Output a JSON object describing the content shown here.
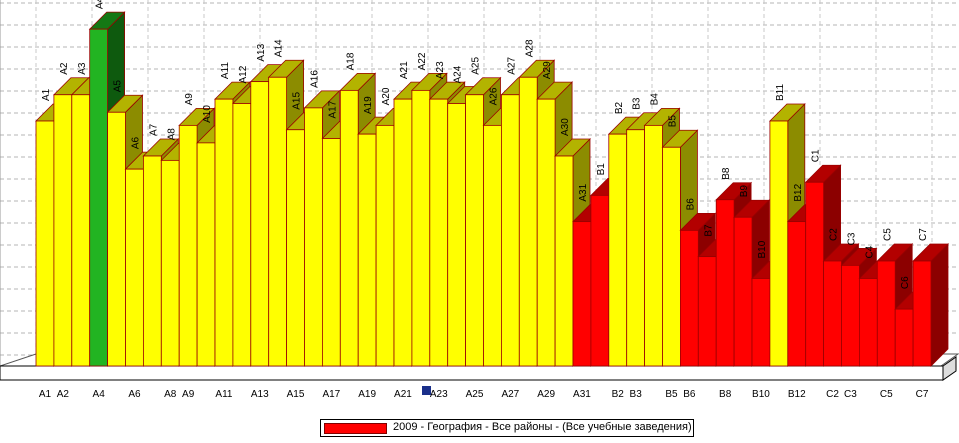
{
  "chart_data": {
    "type": "bar",
    "style": "3d",
    "categories": [
      "A1",
      "A2",
      "A3",
      "A4",
      "A5",
      "A6",
      "A7",
      "A8",
      "A9",
      "A10",
      "A11",
      "A12",
      "A13",
      "A14",
      "A15",
      "A16",
      "A17",
      "A18",
      "A19",
      "A20",
      "A21",
      "A22",
      "A23",
      "A24",
      "A25",
      "A26",
      "A27",
      "A28",
      "A29",
      "A30",
      "A31",
      "B1",
      "B2",
      "B3",
      "B4",
      "B5",
      "B6",
      "B7",
      "B8",
      "B9",
      "B10",
      "B11",
      "B12",
      "C1",
      "C2",
      "C3",
      "C4",
      "C5",
      "C6",
      "C7"
    ],
    "values": [
      56,
      62,
      62,
      77,
      58,
      45,
      48,
      47,
      55,
      51,
      61,
      60,
      65,
      66,
      54,
      59,
      52,
      63,
      53,
      55,
      61,
      63,
      61,
      60,
      62,
      55,
      62,
      66,
      61,
      48,
      33,
      39,
      53,
      54,
      55,
      50,
      31,
      25,
      38,
      34,
      20,
      56,
      33,
      42,
      24,
      23,
      20,
      24,
      13,
      24
    ],
    "colors": [
      "yellow",
      "yellow",
      "yellow",
      "green",
      "yellow",
      "yellow",
      "yellow",
      "yellow",
      "yellow",
      "yellow",
      "yellow",
      "yellow",
      "yellow",
      "yellow",
      "yellow",
      "yellow",
      "yellow",
      "yellow",
      "yellow",
      "yellow",
      "yellow",
      "yellow",
      "yellow",
      "yellow",
      "yellow",
      "yellow",
      "yellow",
      "yellow",
      "yellow",
      "yellow",
      "red",
      "red",
      "yellow",
      "yellow",
      "yellow",
      "yellow",
      "red",
      "red",
      "red",
      "red",
      "red",
      "yellow",
      "red",
      "red",
      "red",
      "red",
      "red",
      "red",
      "red",
      "red"
    ],
    "x_tick_labels": [
      "A1",
      "A2",
      "A4",
      "A6",
      "A8",
      "A9",
      "A11",
      "A13",
      "A15",
      "A17",
      "A19",
      "A21",
      "A23",
      "A25",
      "A27",
      "A29",
      "A31",
      "B2",
      "B3",
      "B5",
      "B6",
      "B8",
      "B10",
      "B12",
      "C2",
      "C3",
      "C5",
      "C7"
    ],
    "ylim": [
      0,
      80
    ],
    "grid": true,
    "legend": {
      "position": "bottom",
      "entries": [
        "2009 - География - Все районы - (Все учебные заведения)"
      ]
    },
    "palette": {
      "yellow": [
        "#ffff00",
        "#b3b300",
        "#8c8c00"
      ],
      "green": [
        "#22b422",
        "#147814",
        "#0e5a0e"
      ],
      "red": [
        "#ff0000",
        "#b30000",
        "#8c0000"
      ],
      "edge": "#9a0000"
    }
  }
}
